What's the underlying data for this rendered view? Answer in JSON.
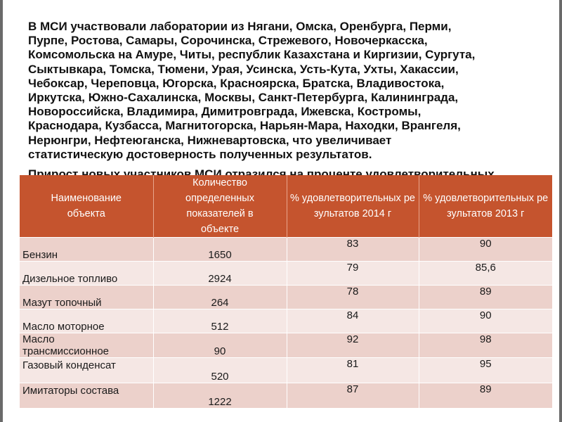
{
  "paragraph_lines": [
    "В МСИ участвовали лаборатории из Нягани, Омска, Оренбурга, Перми,",
    "Пурпе, Ростова, Самары, Сорочинска, Стрежевого, Новочеркасска,",
    "Комсомольска на Амуре, Читы, республик Казахстана и Киргизии, Сургута,",
    "Сыктывкара, Томска, Тюмени, Урая, Усинска, Усть-Кута, Ухты, Хакассии,",
    "Чебоксар, Череповца, Югорска, Красноярска, Братска, Владивостока,",
    "Иркутска, Южно-Сахалинска, Москвы, Санкт-Петербурга, Калининграда,",
    "Новороссийска, Владимира, Димитровграда, Ижевска, Костромы,",
    "Краснодара, Кузбасса, Магнитогорска, Нарьян-Мара, Находки, Врангеля,",
    "Нерюнгри, Нефтеюганска, Нижневартовска, что увеличивает",
    "статистическую достоверность полученных результатов."
  ],
  "overflow_line": "Прирост новых участников МСИ отразился на проценте удовлетворительных",
  "table": {
    "headers": [
      "Наименование объекта",
      "Количество определенных показателей в объекте",
      "% удовлетворительных результатов 2014 г",
      "% удовлетворительных результатов 2013 г"
    ],
    "rows": [
      {
        "name": "Бензин",
        "count": "1650",
        "p2014": "83",
        "p2013": "90"
      },
      {
        "name": "Дизельное топливо",
        "count": "2924",
        "p2014": "79",
        "p2013": "85,6"
      },
      {
        "name": "Мазут топочный",
        "count": "264",
        "p2014": "78",
        "p2013": "89"
      },
      {
        "name": "Масло моторное",
        "count": "512",
        "p2014": "84",
        "p2013": "90"
      },
      {
        "name": "Масло трансмиссионное",
        "count": "90",
        "p2014": "92",
        "p2013": "98"
      },
      {
        "name": "Газовый конденсат",
        "count": "520",
        "p2014": "81",
        "p2013": "95"
      },
      {
        "name": "Имитаторы состава",
        "count": "1222",
        "p2014": "87",
        "p2013": "89"
      }
    ]
  },
  "colors": {
    "header_bg": "#c5542e",
    "row_odd": "#ecd1cb",
    "row_even": "#f5e7e4"
  }
}
